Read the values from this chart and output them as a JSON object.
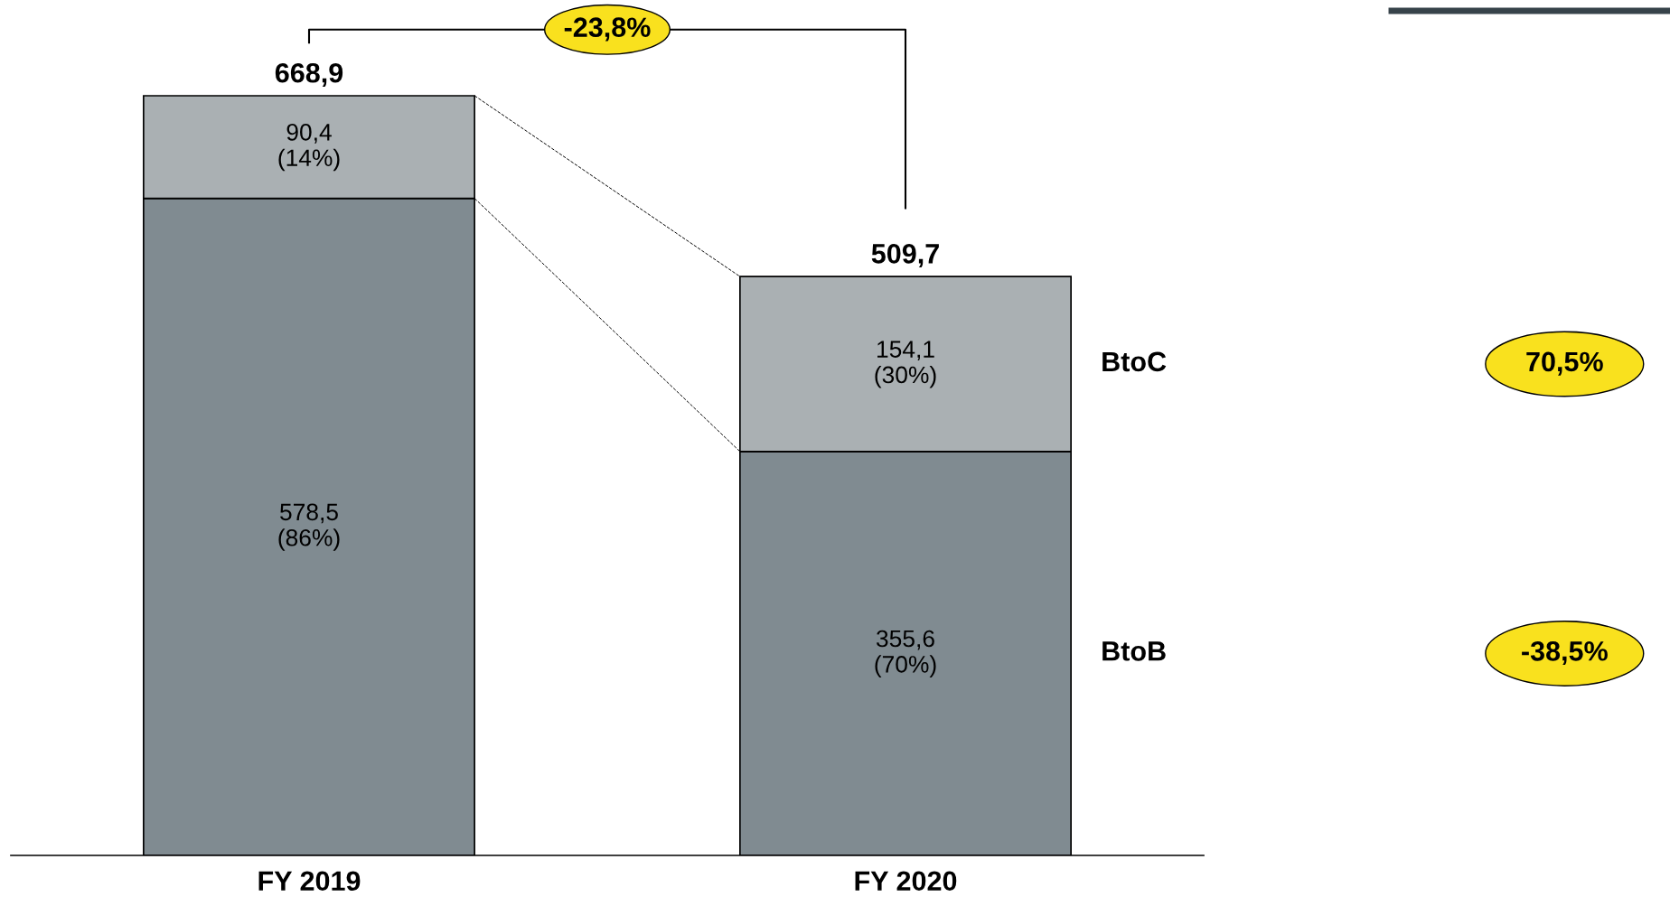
{
  "chart_data": {
    "type": "bar",
    "stacked": true,
    "categories": [
      "FY 2019",
      "FY 2020"
    ],
    "series": [
      {
        "name": "BtoB",
        "color": "#808b91",
        "values": [
          578.5,
          355.6
        ],
        "value_labels": [
          "578,5\n(86%)",
          "355,6\n(70%)"
        ]
      },
      {
        "name": "BtoC",
        "color": "#aab0b3",
        "values": [
          90.4,
          154.1
        ],
        "value_labels": [
          "90,4\n(14%)",
          "154,1\n(30%)"
        ]
      }
    ],
    "totals": [
      "668,9",
      "509,7"
    ],
    "annotations": [
      "-23,8%",
      "70,5%",
      "-38,5%"
    ],
    "legend": false,
    "grid": false
  }
}
